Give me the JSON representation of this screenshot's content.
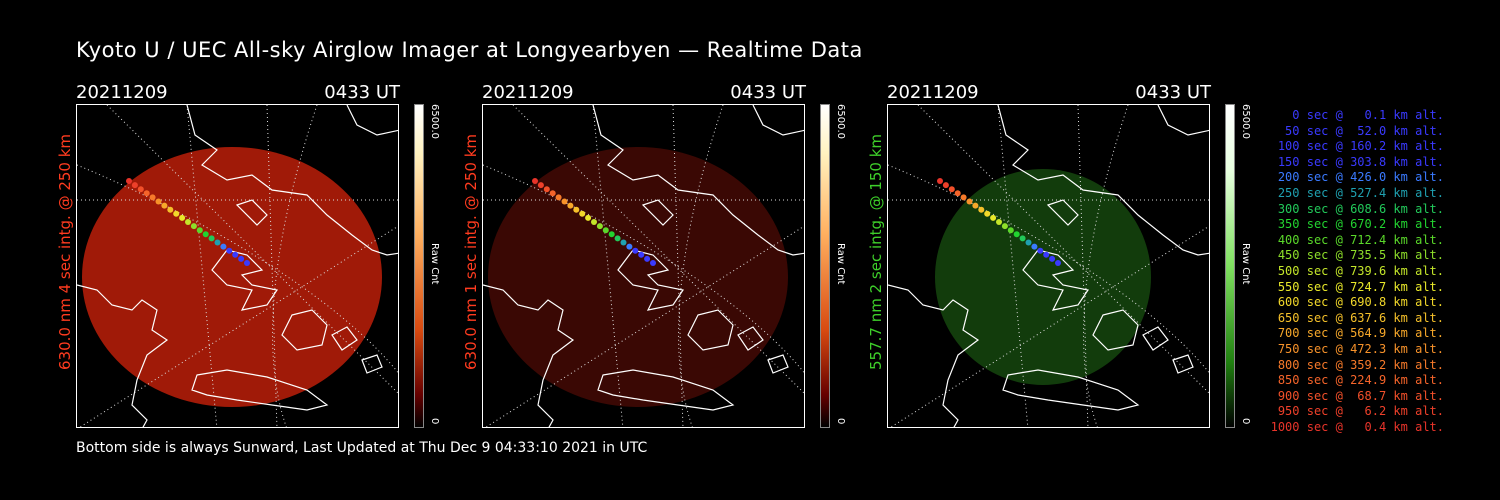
{
  "title": "Kyoto U / UEC All-sky Airglow Imager at Longyearbyen — Realtime Data",
  "footer": "Bottom side is always Sunward, Last Updated at Thu Dec  9 04:33:10 2021 in UTC",
  "panels": [
    {
      "date": "20211209",
      "time": "0433 UT",
      "label": "630.0 nm 4 sec intg. @ 250 km",
      "label_color": "#ff3b1f",
      "cbar_max": "6500.0",
      "cbar_label": "Raw Cnt",
      "cbar_min": "0",
      "glow": "#a01a08"
    },
    {
      "date": "20211209",
      "time": "0433 UT",
      "label": "630.0 nm 1 sec intg. @ 250 km",
      "label_color": "#ff3b1f",
      "cbar_max": "6500.0",
      "cbar_label": "Raw Cnt",
      "cbar_min": "0",
      "glow": "#3a0804"
    },
    {
      "date": "20211209",
      "time": "0433 UT",
      "label": "557.7 nm 2 sec intg. @ 150 km",
      "label_color": "#3ecf2a",
      "cbar_max": "6500.0",
      "cbar_label": "Raw Cnt",
      "cbar_min": "0",
      "glow": "#123c0c"
    }
  ],
  "legend": [
    {
      "text": "0 sec @   0.1 km alt.",
      "color": "#3a3aff"
    },
    {
      "text": "50 sec @  52.0 km alt.",
      "color": "#3a3aff"
    },
    {
      "text": "100 sec @ 160.2 km alt.",
      "color": "#3a3aff"
    },
    {
      "text": "150 sec @ 303.8 km alt.",
      "color": "#3a3aff"
    },
    {
      "text": "200 sec @ 426.0 km alt.",
      "color": "#3a7aff"
    },
    {
      "text": "250 sec @ 527.4 km alt.",
      "color": "#1fa0b0"
    },
    {
      "text": "300 sec @ 608.6 km alt.",
      "color": "#22c95a"
    },
    {
      "text": "350 sec @ 670.2 km alt.",
      "color": "#22d430"
    },
    {
      "text": "400 sec @ 712.4 km alt.",
      "color": "#5ad82a"
    },
    {
      "text": "450 sec @ 735.5 km alt.",
      "color": "#8ede2a"
    },
    {
      "text": "500 sec @ 739.6 km alt.",
      "color": "#c4e62a"
    },
    {
      "text": "550 sec @ 724.7 km alt.",
      "color": "#e8e82a"
    },
    {
      "text": "600 sec @ 690.8 km alt.",
      "color": "#f2d82a"
    },
    {
      "text": "650 sec @ 637.6 km alt.",
      "color": "#f5c02a"
    },
    {
      "text": "700 sec @ 564.9 km alt.",
      "color": "#f7a82a"
    },
    {
      "text": "750 sec @ 472.3 km alt.",
      "color": "#f7922a"
    },
    {
      "text": "800 sec @ 359.2 km alt.",
      "color": "#f77a2a"
    },
    {
      "text": "850 sec @ 224.9 km alt.",
      "color": "#f5642a"
    },
    {
      "text": "900 sec @  68.7 km alt.",
      "color": "#f2502a"
    },
    {
      "text": "950 sec @   6.2 km alt.",
      "color": "#ee402a"
    },
    {
      "text": "1000 sec @   0.4 km alt.",
      "color": "#e8342a"
    }
  ]
}
